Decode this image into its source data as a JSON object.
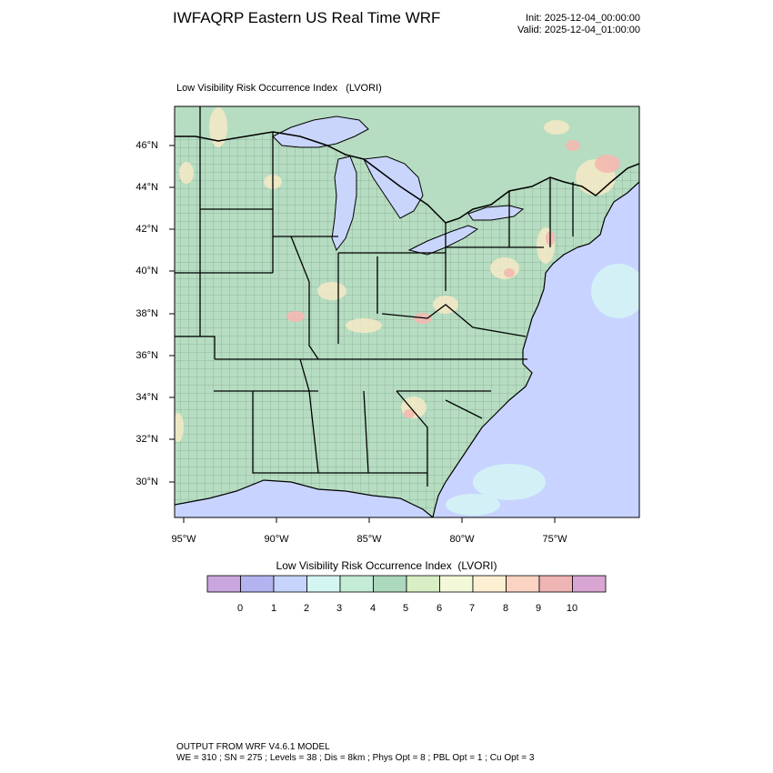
{
  "header": {
    "title": "IWFAQRP Eastern US Real Time WRF",
    "init": "Init: 2025-12-04_00:00:00",
    "valid": "Valid: 2025-12-04_01:00:00"
  },
  "map": {
    "title": "Low Visibility Risk Occurrence Index   (LVORI)",
    "lat_labels": [
      "46°N",
      "44°N",
      "42°N",
      "40°N",
      "38°N",
      "36°N",
      "34°N",
      "32°N",
      "30°N"
    ],
    "lon_labels": [
      "95°W",
      "90°W",
      "85°W",
      "80°W",
      "75°W"
    ],
    "colors": {
      "land_base": "#b6ddc2",
      "water": "#c8d4ff",
      "great_lakes": "#c9d5fa",
      "high_risk": "#f4b8b0",
      "medium_risk": "#f6e9c4"
    }
  },
  "colorbar": {
    "title": "Low Visibility Risk Occurrence Index  (LVORI)",
    "labels": [
      "0",
      "1",
      "2",
      "3",
      "4",
      "5",
      "6",
      "7",
      "8",
      "9",
      "10"
    ],
    "colors": [
      "#c9a6dd",
      "#b3b3f0",
      "#c6d4fb",
      "#d4f6f2",
      "#c4ecd6",
      "#acd8bd",
      "#d8eec4",
      "#f2f8d8",
      "#fdf0d2",
      "#fbd3c3",
      "#efb4b4",
      "#d9a6d3"
    ]
  },
  "footer": {
    "line1": "OUTPUT FROM WRF V4.6.1 MODEL",
    "line2": "WE = 310 ; SN = 275 ; Levels = 38 ; Dis = 8km ; Phys Opt = 8 ; PBL Opt = 1 ; Cu Opt = 3"
  }
}
